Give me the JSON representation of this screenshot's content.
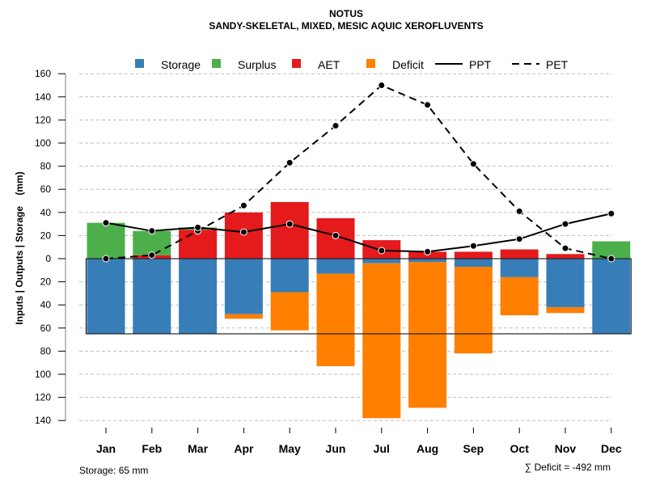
{
  "chart_data": {
    "type": "bar",
    "title": "NOTUS",
    "subtitle": "SANDY-SKELETAL, MIXED, MESIC AQUIC XEROFLUVENTS",
    "xlabel": "",
    "ylabel": "Inputs | Outputs | Storage    (mm)",
    "ylim": [
      -140,
      160
    ],
    "y_ticks": [
      160,
      140,
      120,
      100,
      80,
      60,
      40,
      20,
      0,
      20,
      40,
      60,
      80,
      100,
      120,
      140
    ],
    "y_tick_values": [
      160,
      140,
      120,
      100,
      80,
      60,
      40,
      20,
      0,
      -20,
      -40,
      -60,
      -80,
      -100,
      -120,
      -140
    ],
    "grid": true,
    "legend_position": "top",
    "categories": [
      "Jan",
      "Feb",
      "Mar",
      "Apr",
      "May",
      "Jun",
      "Jul",
      "Aug",
      "Sep",
      "Oct",
      "Nov",
      "Dec"
    ],
    "legend": [
      {
        "name": "Storage",
        "kind": "box",
        "color": "#377EB8"
      },
      {
        "name": "Surplus",
        "kind": "box",
        "color": "#4DAF4A"
      },
      {
        "name": "AET",
        "kind": "box",
        "color": "#E41A1C"
      },
      {
        "name": "Deficit",
        "kind": "box",
        "color": "#FF7F00"
      },
      {
        "name": "PPT",
        "kind": "solid-line",
        "color": "#000000"
      },
      {
        "name": "PET",
        "kind": "dashed-line",
        "color": "#000000"
      }
    ],
    "series": [
      {
        "name": "Storage",
        "color": "#377EB8",
        "values": [
          65,
          65,
          65,
          48,
          29,
          13,
          4,
          3,
          7,
          16,
          42,
          65
        ]
      },
      {
        "name": "Surplus",
        "color": "#4DAF4A",
        "values": [
          31,
          21,
          2,
          0,
          0,
          0,
          0,
          0,
          0,
          0,
          0,
          15
        ]
      },
      {
        "name": "AET",
        "color": "#E41A1C",
        "values": [
          0,
          3,
          25,
          40,
          49,
          35,
          16,
          6,
          6,
          8,
          4,
          0
        ]
      },
      {
        "name": "Deficit",
        "color": "#FF7F00",
        "values": [
          0,
          0,
          0,
          -4,
          -33,
          -80,
          -134,
          -126,
          -75,
          -33,
          -5,
          0
        ]
      },
      {
        "name": "PPT",
        "color": "#000000",
        "values": [
          31,
          24,
          27,
          23,
          30,
          20,
          7,
          6,
          11,
          17,
          30,
          39
        ]
      },
      {
        "name": "PET",
        "color": "#000000",
        "values": [
          0,
          3,
          24,
          46,
          83,
          115,
          150,
          133,
          82,
          41,
          9,
          0
        ]
      }
    ],
    "storage_capacity": 65,
    "footer_left": "Storage: 65 mm",
    "footer_right": "∑ Deficit = -492 mm"
  }
}
